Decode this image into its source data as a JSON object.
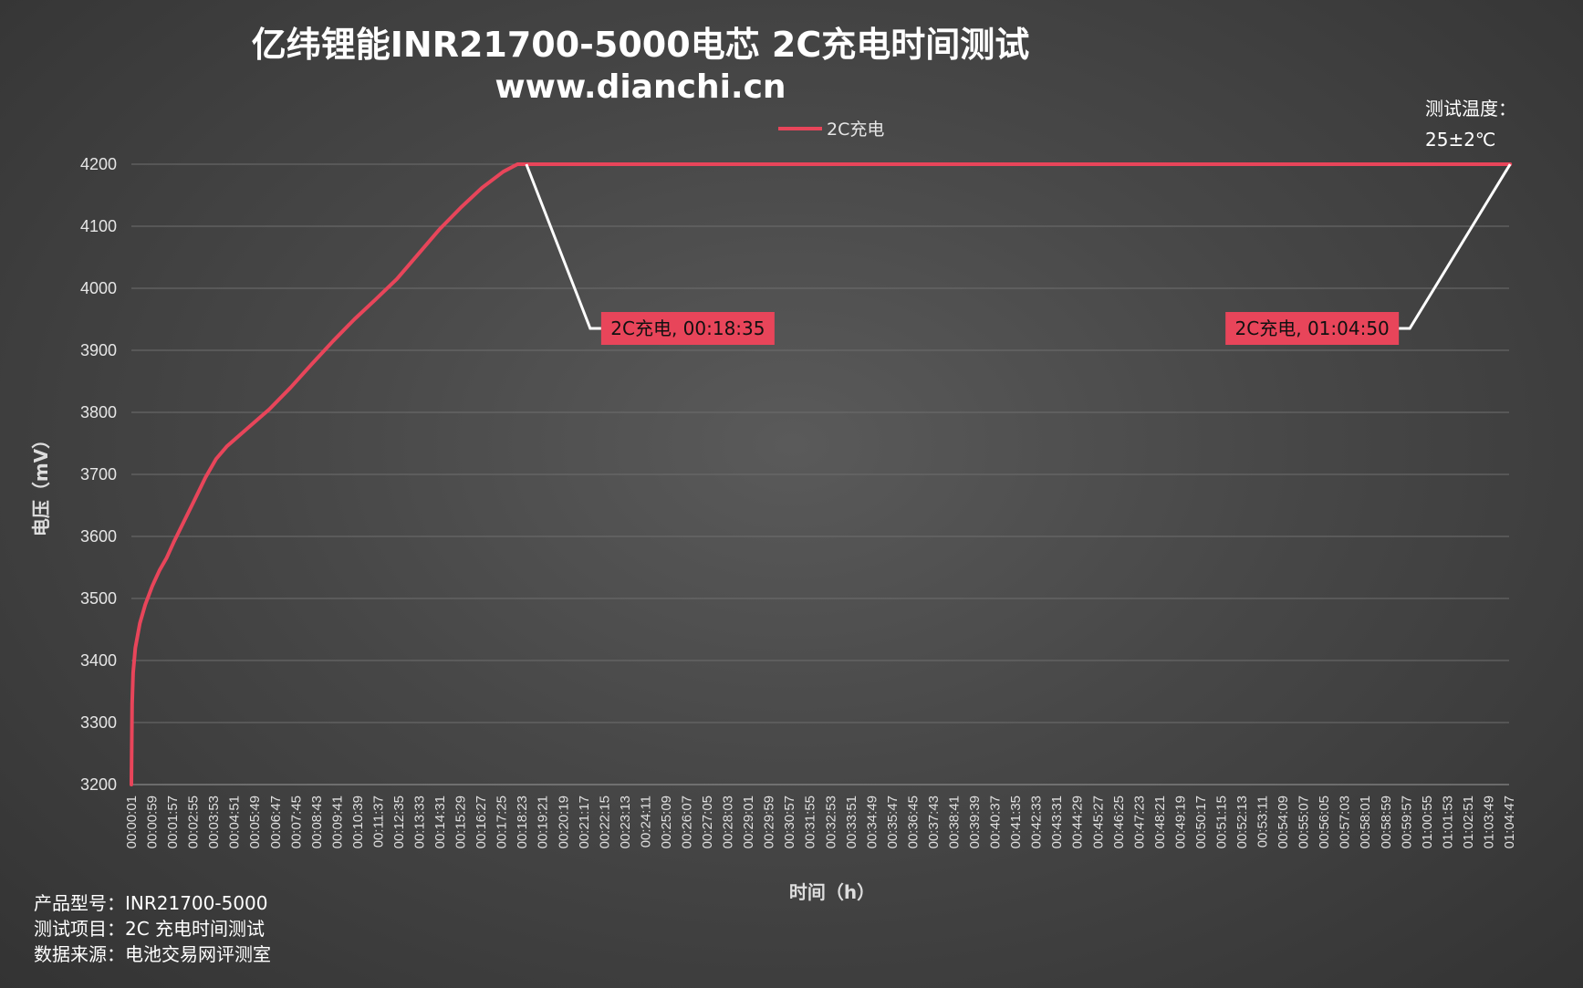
{
  "chart_data": {
    "type": "line",
    "title": "亿纬锂能INR21700-5000电芯 2C充电时间测试",
    "subtitle": "www.dianchi.cn",
    "xlabel": "时间（h）",
    "ylabel": "电压（mV）",
    "ylim": [
      3200,
      4200
    ],
    "yticks": [
      3200,
      3300,
      3400,
      3500,
      3600,
      3700,
      3800,
      3900,
      4000,
      4100,
      4200
    ],
    "xlim_seconds": [
      1,
      3887
    ],
    "legend_position": "top-center",
    "grid": true,
    "x_ticks": [
      "00:00:01",
      "00:00:59",
      "00:01:57",
      "00:02:55",
      "00:03:53",
      "00:04:51",
      "00:05:49",
      "00:06:47",
      "00:07:45",
      "00:08:43",
      "00:09:41",
      "00:10:39",
      "00:11:37",
      "00:12:35",
      "00:13:33",
      "00:14:31",
      "00:15:29",
      "00:16:27",
      "00:17:25",
      "00:18:23",
      "00:19:21",
      "00:20:19",
      "00:21:17",
      "00:22:15",
      "00:23:13",
      "00:24:11",
      "00:25:09",
      "00:26:07",
      "00:27:05",
      "00:28:03",
      "00:29:01",
      "00:29:59",
      "00:30:57",
      "00:31:55",
      "00:32:53",
      "00:33:51",
      "00:34:49",
      "00:35:47",
      "00:36:45",
      "00:37:43",
      "00:38:41",
      "00:39:39",
      "00:40:37",
      "00:41:35",
      "00:42:33",
      "00:43:31",
      "00:44:29",
      "00:45:27",
      "00:46:25",
      "00:47:23",
      "00:48:21",
      "00:49:19",
      "00:50:17",
      "00:51:15",
      "00:52:13",
      "00:53:11",
      "00:54:09",
      "00:55:07",
      "00:56:05",
      "00:57:03",
      "00:58:01",
      "00:58:59",
      "00:59:57",
      "01:00:55",
      "01:01:53",
      "01:02:51",
      "01:03:49",
      "01:04:47"
    ],
    "series": [
      {
        "name": "2C充电",
        "color": "#e8455a",
        "points": [
          [
            "00:00:01",
            3200
          ],
          [
            "00:00:03",
            3330
          ],
          [
            "00:00:06",
            3380
          ],
          [
            "00:00:12",
            3420
          ],
          [
            "00:00:25",
            3460
          ],
          [
            "00:00:40",
            3490
          ],
          [
            "00:01:00",
            3520
          ],
          [
            "00:01:20",
            3545
          ],
          [
            "00:01:40",
            3565
          ],
          [
            "00:02:00",
            3590
          ],
          [
            "00:02:30",
            3625
          ],
          [
            "00:03:00",
            3660
          ],
          [
            "00:03:30",
            3695
          ],
          [
            "00:04:00",
            3725
          ],
          [
            "00:04:30",
            3745
          ],
          [
            "00:05:30",
            3775
          ],
          [
            "00:06:30",
            3805
          ],
          [
            "00:07:30",
            3840
          ],
          [
            "00:08:30",
            3878
          ],
          [
            "00:09:30",
            3915
          ],
          [
            "00:10:30",
            3950
          ],
          [
            "00:11:30",
            3982
          ],
          [
            "00:12:30",
            4015
          ],
          [
            "00:13:30",
            4055
          ],
          [
            "00:14:30",
            4095
          ],
          [
            "00:15:30",
            4130
          ],
          [
            "00:16:30",
            4162
          ],
          [
            "00:17:30",
            4188
          ],
          [
            "00:18:10",
            4200
          ],
          [
            "00:18:35",
            4200
          ],
          [
            "00:30:00",
            4200
          ],
          [
            "00:45:00",
            4200
          ],
          [
            "01:00:00",
            4200
          ],
          [
            "01:04:50",
            4200
          ]
        ]
      }
    ],
    "annotations": [
      {
        "text": "2C充电, 00:18:35",
        "x": "00:18:35",
        "y": 4200
      },
      {
        "text": "2C充电, 01:04:50",
        "x": "01:04:50",
        "y": 4200
      }
    ],
    "temperature_note": [
      "测试温度：",
      "25±2℃"
    ],
    "footer": [
      "产品型号：INR21700-5000",
      "测试项目：2C 充电时间测试",
      "数据来源：电池交易网评测室"
    ]
  }
}
